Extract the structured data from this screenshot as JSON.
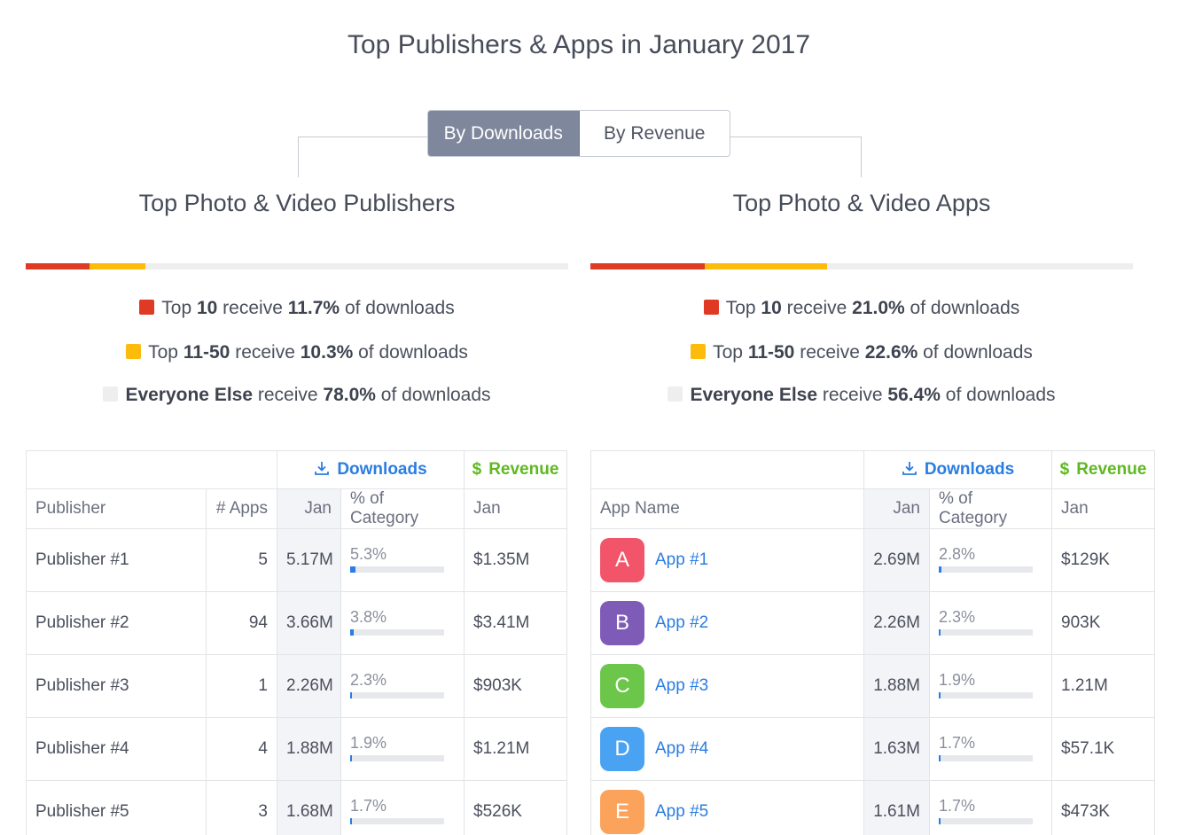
{
  "title": "Top Publishers & Apps in January 2017",
  "toggle": {
    "downloads_label": "By Downloads",
    "revenue_label": "By Revenue",
    "active": "downloads"
  },
  "colors": {
    "top10": "#e03a24",
    "top11_50": "#fdbc0c",
    "else": "#eeeeee",
    "link": "#2a7de1",
    "revenue": "#5fb821"
  },
  "publishers": {
    "title": "Top Photo & Video Publishers",
    "share": {
      "top10": 11.7,
      "top11_50": 10.3,
      "else": 78.0
    },
    "legend": [
      {
        "pre": "Top ",
        "key": "10",
        "mid": " receive ",
        "value": "11.7%",
        "post": " of downloads"
      },
      {
        "pre": "Top ",
        "key": "11-50",
        "mid": " receive ",
        "value": "10.3%",
        "post": " of downloads"
      },
      {
        "pre": "",
        "key": "Everyone Else",
        "mid": " receive ",
        "value": "78.0%",
        "post": " of downloads"
      }
    ],
    "table": {
      "group_downloads": "Downloads",
      "group_revenue": "Revenue",
      "col_name": "Publisher",
      "col_apps": "# Apps",
      "col_jan": "Jan",
      "col_pct": "% of Category",
      "col_rev_jan": "Jan",
      "rows": [
        {
          "name": "Publisher #1",
          "apps": "5",
          "jan": "5.17M",
          "pct": "5.3%",
          "pct_value": 5.3,
          "revenue": "$1.35M"
        },
        {
          "name": "Publisher #2",
          "apps": "94",
          "jan": "3.66M",
          "pct": "3.8%",
          "pct_value": 3.8,
          "revenue": "$3.41M"
        },
        {
          "name": "Publisher #3",
          "apps": "1",
          "jan": "2.26M",
          "pct": "2.3%",
          "pct_value": 2.3,
          "revenue": "$903K"
        },
        {
          "name": "Publisher #4",
          "apps": "4",
          "jan": "1.88M",
          "pct": "1.9%",
          "pct_value": 1.9,
          "revenue": "$1.21M"
        },
        {
          "name": "Publisher #5",
          "apps": "3",
          "jan": "1.68M",
          "pct": "1.7%",
          "pct_value": 1.7,
          "revenue": "$526K"
        }
      ]
    }
  },
  "apps": {
    "title": "Top Photo & Video Apps",
    "share": {
      "top10": 21.0,
      "top11_50": 22.6,
      "else": 56.4
    },
    "legend": [
      {
        "pre": "Top ",
        "key": "10",
        "mid": " receive ",
        "value": "21.0%",
        "post": " of downloads"
      },
      {
        "pre": "Top ",
        "key": "11-50",
        "mid": " receive ",
        "value": "22.6%",
        "post": " of downloads"
      },
      {
        "pre": "",
        "key": "Everyone Else",
        "mid": " receive ",
        "value": "56.4%",
        "post": " of downloads"
      }
    ],
    "table": {
      "group_downloads": "Downloads",
      "group_revenue": "Revenue",
      "col_name": "App Name",
      "col_jan": "Jan",
      "col_pct": "% of Category",
      "col_rev_jan": "Jan",
      "rows": [
        {
          "letter": "A",
          "icon_color": "#f2546a",
          "name": "App #1",
          "jan": "2.69M",
          "pct": "2.8%",
          "pct_value": 2.8,
          "revenue": "$129K"
        },
        {
          "letter": "B",
          "icon_color": "#7f5bb8",
          "name": "App #2",
          "jan": "2.26M",
          "pct": "2.3%",
          "pct_value": 2.3,
          "revenue": "903K"
        },
        {
          "letter": "C",
          "icon_color": "#6cc64a",
          "name": "App #3",
          "jan": "1.88M",
          "pct": "1.9%",
          "pct_value": 1.9,
          "revenue": "1.21M"
        },
        {
          "letter": "D",
          "icon_color": "#4aa2f2",
          "name": "App #4",
          "jan": "1.63M",
          "pct": "1.7%",
          "pct_value": 1.7,
          "revenue": "$57.1K"
        },
        {
          "letter": "E",
          "icon_color": "#fba35a",
          "name": "App #5",
          "jan": "1.61M",
          "pct": "1.7%",
          "pct_value": 1.7,
          "revenue": "$473K"
        }
      ]
    }
  }
}
